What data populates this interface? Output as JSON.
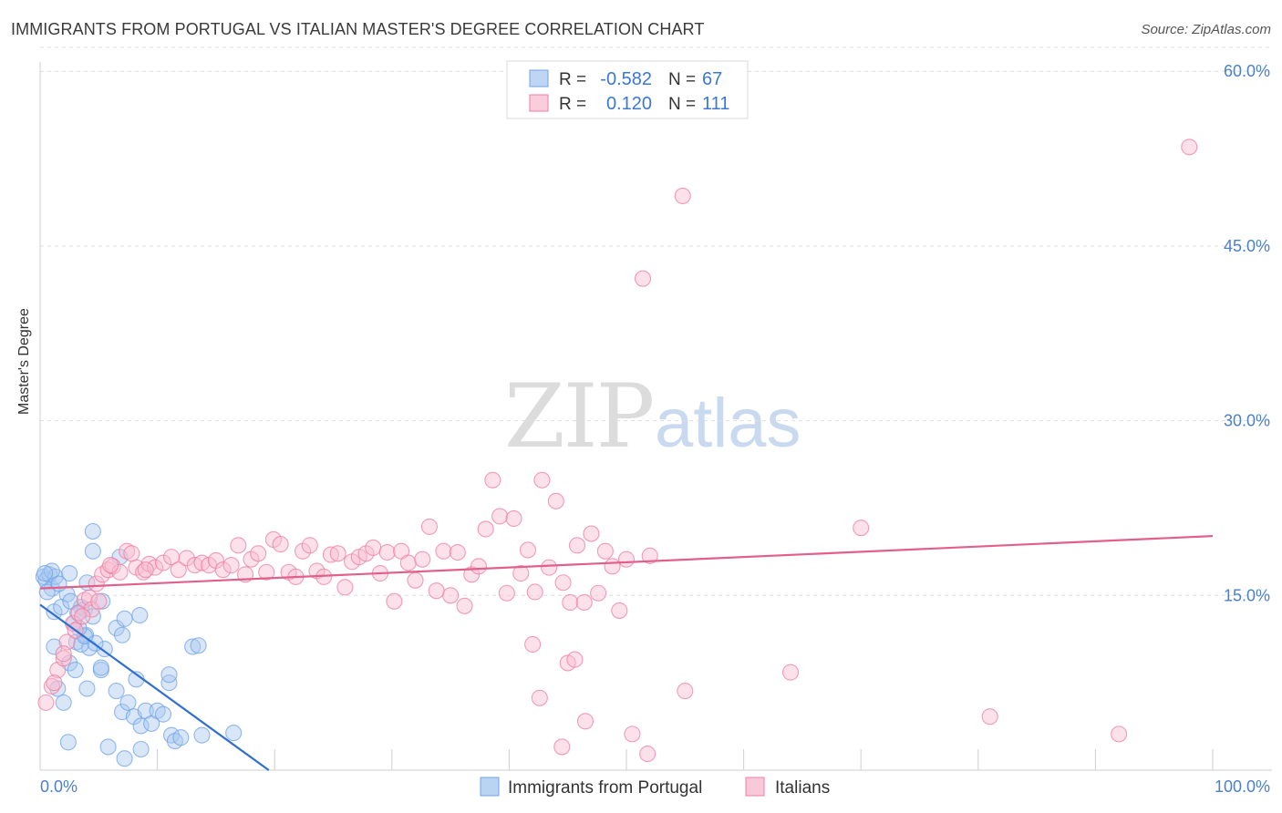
{
  "title": "IMMIGRANTS FROM PORTUGAL VS ITALIAN MASTER'S DEGREE CORRELATION CHART",
  "source": "Source: ZipAtlas.com",
  "watermark": {
    "zip": "ZIP",
    "atlas": "atlas"
  },
  "legend_top": [
    {
      "r_label": "R = ",
      "r_value": "-0.582",
      "n_label": "N = ",
      "n_value": "67",
      "color": "#a8c8f0"
    },
    {
      "r_label": "R = ",
      "r_value": "0.120",
      "n_label": "N = ",
      "n_value": "111",
      "color": "#f8bcd0"
    }
  ],
  "chart_data": {
    "type": "scatter",
    "xlabel": "",
    "ylabel": "Master's Degree",
    "xlim": [
      0,
      100
    ],
    "ylim": [
      0,
      63
    ],
    "x_tick_labels": [
      "0.0%",
      "100.0%"
    ],
    "y_ticks": [
      15,
      30,
      45,
      60
    ],
    "y_tick_labels": [
      "15.0%",
      "30.0%",
      "45.0%",
      "60.0%"
    ],
    "grid": true,
    "legend_position": "bottom",
    "series": [
      {
        "name": "Immigrants from Portugal",
        "color": "#6fa3e6",
        "fill": "#a8c8f0",
        "trend": {
          "x": [
            0,
            19.5
          ],
          "y": [
            14.2,
            0
          ]
        },
        "points": [
          [
            0.3,
            16.6
          ],
          [
            0.5,
            16.3
          ],
          [
            0.8,
            16.8
          ],
          [
            1.0,
            15.6
          ],
          [
            0.6,
            15.3
          ],
          [
            1.3,
            16.6
          ],
          [
            2.5,
            16.9
          ],
          [
            1.2,
            13.6
          ],
          [
            2.3,
            15.1
          ],
          [
            3.5,
            14.0
          ],
          [
            4.0,
            16.1
          ],
          [
            3.8,
            13.8
          ],
          [
            2.9,
            12.6
          ],
          [
            3.1,
            11.0
          ],
          [
            1.2,
            10.6
          ],
          [
            3.9,
            11.6
          ],
          [
            4.2,
            10.5
          ],
          [
            2.5,
            9.2
          ],
          [
            3.0,
            8.6
          ],
          [
            4.0,
            7.0
          ],
          [
            1.5,
            7.0
          ],
          [
            2.0,
            5.8
          ],
          [
            3.5,
            10.8
          ],
          [
            4.5,
            13.2
          ],
          [
            3.2,
            13.5
          ],
          [
            3.8,
            11.5
          ],
          [
            5.3,
            14.5
          ],
          [
            5.5,
            10.4
          ],
          [
            6.5,
            12.2
          ],
          [
            7.0,
            11.6
          ],
          [
            7.2,
            13.0
          ],
          [
            8.5,
            13.3
          ],
          [
            5.2,
            8.6
          ],
          [
            6.5,
            6.8
          ],
          [
            7.0,
            5.0
          ],
          [
            7.5,
            5.8
          ],
          [
            8.0,
            4.6
          ],
          [
            8.2,
            7.8
          ],
          [
            8.6,
            3.8
          ],
          [
            9.0,
            5.1
          ],
          [
            9.5,
            4.0
          ],
          [
            10.0,
            5.1
          ],
          [
            10.5,
            4.8
          ],
          [
            11.0,
            7.5
          ],
          [
            11.2,
            3.0
          ],
          [
            11.5,
            2.5
          ],
          [
            12.0,
            2.8
          ],
          [
            13.0,
            10.6
          ],
          [
            13.5,
            10.7
          ],
          [
            13.8,
            3.0
          ],
          [
            16.5,
            3.2
          ],
          [
            2.4,
            2.4
          ],
          [
            5.8,
            2.0
          ],
          [
            7.2,
            1.0
          ],
          [
            8.6,
            1.8
          ],
          [
            11.0,
            8.2
          ],
          [
            4.5,
            20.5
          ],
          [
            4.5,
            18.8
          ],
          [
            6.8,
            18.3
          ],
          [
            5.2,
            8.8
          ],
          [
            1.0,
            17.1
          ],
          [
            0.4,
            16.9
          ],
          [
            1.6,
            16.0
          ],
          [
            1.8,
            14.0
          ],
          [
            2.6,
            14.5
          ],
          [
            3.3,
            12.2
          ],
          [
            4.7,
            10.9
          ]
        ]
      },
      {
        "name": "Italians",
        "color": "#ee7ea0",
        "fill": "#f8bcd0",
        "trend": {
          "x": [
            0,
            100
          ],
          "y": [
            15.6,
            20.1
          ]
        },
        "points": [
          [
            0.5,
            5.8
          ],
          [
            1.0,
            7.2
          ],
          [
            1.5,
            8.6
          ],
          [
            2.0,
            9.6
          ],
          [
            2.3,
            11.0
          ],
          [
            2.8,
            12.6
          ],
          [
            3.3,
            13.5
          ],
          [
            3.8,
            14.6
          ],
          [
            4.2,
            14.8
          ],
          [
            4.8,
            16.0
          ],
          [
            5.3,
            16.8
          ],
          [
            5.8,
            17.2
          ],
          [
            6.2,
            17.5
          ],
          [
            6.8,
            17.0
          ],
          [
            7.4,
            18.8
          ],
          [
            8.2,
            17.4
          ],
          [
            8.8,
            17.0
          ],
          [
            9.3,
            17.7
          ],
          [
            9.8,
            17.4
          ],
          [
            10.5,
            17.8
          ],
          [
            11.2,
            18.3
          ],
          [
            11.8,
            17.2
          ],
          [
            12.5,
            18.2
          ],
          [
            13.2,
            17.6
          ],
          [
            13.8,
            17.8
          ],
          [
            14.4,
            17.6
          ],
          [
            15.0,
            18.0
          ],
          [
            15.6,
            17.2
          ],
          [
            16.3,
            17.6
          ],
          [
            16.9,
            19.3
          ],
          [
            17.5,
            16.8
          ],
          [
            18.0,
            18.1
          ],
          [
            18.6,
            18.6
          ],
          [
            19.3,
            17.0
          ],
          [
            19.9,
            19.8
          ],
          [
            20.5,
            19.4
          ],
          [
            21.2,
            17.0
          ],
          [
            21.8,
            16.6
          ],
          [
            22.4,
            18.8
          ],
          [
            23.0,
            19.3
          ],
          [
            23.6,
            17.1
          ],
          [
            24.2,
            16.6
          ],
          [
            24.8,
            18.5
          ],
          [
            25.4,
            18.6
          ],
          [
            26.0,
            15.7
          ],
          [
            26.6,
            17.9
          ],
          [
            27.2,
            18.3
          ],
          [
            27.8,
            18.6
          ],
          [
            28.4,
            19.1
          ],
          [
            29.0,
            16.9
          ],
          [
            29.6,
            18.7
          ],
          [
            30.2,
            14.5
          ],
          [
            30.8,
            18.8
          ],
          [
            31.4,
            17.8
          ],
          [
            32.0,
            16.3
          ],
          [
            32.6,
            18.1
          ],
          [
            33.2,
            20.9
          ],
          [
            33.8,
            15.4
          ],
          [
            34.4,
            18.8
          ],
          [
            35.0,
            15.0
          ],
          [
            35.6,
            18.7
          ],
          [
            36.2,
            14.1
          ],
          [
            36.8,
            16.8
          ],
          [
            37.4,
            17.5
          ],
          [
            38.0,
            20.7
          ],
          [
            38.6,
            24.9
          ],
          [
            39.2,
            21.8
          ],
          [
            39.8,
            15.2
          ],
          [
            40.4,
            21.6
          ],
          [
            41.0,
            16.9
          ],
          [
            41.6,
            18.9
          ],
          [
            42.2,
            15.3
          ],
          [
            42.8,
            24.9
          ],
          [
            43.4,
            17.4
          ],
          [
            44.0,
            23.1
          ],
          [
            44.6,
            16.1
          ],
          [
            45.2,
            14.4
          ],
          [
            45.8,
            19.3
          ],
          [
            46.4,
            14.4
          ],
          [
            47.0,
            20.3
          ],
          [
            47.6,
            15.2
          ],
          [
            48.2,
            18.8
          ],
          [
            48.8,
            17.5
          ],
          [
            49.4,
            13.7
          ],
          [
            50.0,
            18.1
          ],
          [
            52.0,
            18.4
          ],
          [
            54.8,
            49.3
          ],
          [
            51.4,
            42.2
          ],
          [
            70.0,
            20.8
          ],
          [
            98.0,
            53.5
          ],
          [
            42.0,
            10.8
          ],
          [
            45.0,
            9.2
          ],
          [
            45.6,
            9.5
          ],
          [
            42.6,
            6.2
          ],
          [
            55.0,
            6.8
          ],
          [
            64.0,
            8.4
          ],
          [
            81.0,
            4.6
          ],
          [
            92.0,
            3.1
          ],
          [
            50.5,
            3.1
          ],
          [
            46.5,
            4.2
          ],
          [
            44.5,
            2.0
          ],
          [
            51.8,
            1.4
          ],
          [
            3.0,
            12.0
          ],
          [
            4.4,
            13.8
          ],
          [
            6.0,
            17.6
          ],
          [
            7.8,
            18.6
          ],
          [
            9.0,
            17.2
          ],
          [
            2.0,
            10.0
          ],
          [
            1.2,
            7.5
          ],
          [
            3.6,
            13.2
          ],
          [
            5.0,
            14.5
          ]
        ]
      }
    ]
  }
}
